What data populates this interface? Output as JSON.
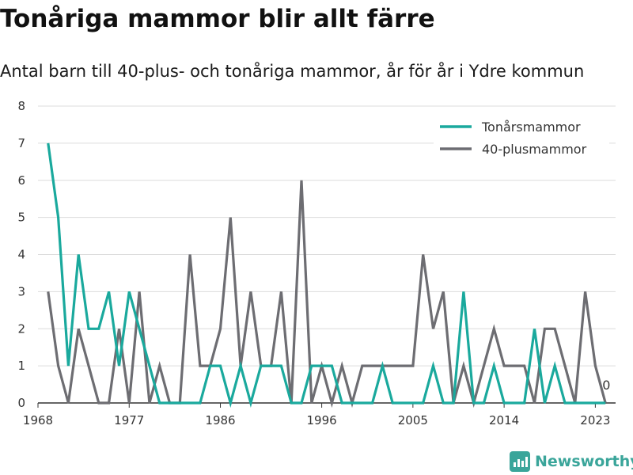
{
  "title": "Tonåriga mammor blir allt färre",
  "subtitle": "Antal barn till 40-plus- och tonåriga mammor, år för år i Ydre kommun",
  "brand": {
    "name": "Newsworthy",
    "color": "#3aa59a",
    "icon": "bar-chart-icon"
  },
  "chart_data": {
    "type": "line",
    "title": "Tonåriga mammor blir allt färre",
    "subtitle": "Antal barn till 40-plus- och tonåriga mammor, år för år i Ydre kommun",
    "xlabel": "",
    "ylabel": "",
    "x": [
      1969,
      1970,
      1971,
      1972,
      1973,
      1974,
      1975,
      1976,
      1977,
      1978,
      1979,
      1980,
      1981,
      1982,
      1983,
      1984,
      1985,
      1986,
      1987,
      1988,
      1989,
      1990,
      1991,
      1992,
      1993,
      1994,
      1995,
      1996,
      1997,
      1998,
      1999,
      2000,
      2001,
      2002,
      2003,
      2004,
      2005,
      2006,
      2007,
      2008,
      2009,
      2010,
      2011,
      2012,
      2013,
      2014,
      2015,
      2016,
      2017,
      2018,
      2019,
      2020,
      2021,
      2022,
      2023,
      2024
    ],
    "series": [
      {
        "name": "Tonårsmammor",
        "color": "#1aa99d",
        "values": [
          7,
          5,
          1,
          4,
          2,
          2,
          3,
          1,
          3,
          2,
          1,
          0,
          0,
          0,
          0,
          0,
          1,
          1,
          0,
          1,
          0,
          1,
          1,
          1,
          0,
          0,
          1,
          1,
          1,
          0,
          0,
          0,
          0,
          1,
          0,
          0,
          0,
          0,
          1,
          0,
          0,
          3,
          0,
          0,
          1,
          0,
          0,
          0,
          2,
          0,
          1,
          0,
          0,
          0,
          0,
          0
        ]
      },
      {
        "name": "40-plusmammor",
        "color": "#6d6d72",
        "values": [
          3,
          1,
          0,
          2,
          1,
          0,
          0,
          2,
          0,
          3,
          0,
          1,
          0,
          0,
          4,
          1,
          1,
          2,
          5,
          1,
          3,
          1,
          1,
          3,
          0,
          6,
          0,
          1,
          0,
          1,
          0,
          1,
          1,
          1,
          1,
          1,
          1,
          4,
          2,
          3,
          0,
          1,
          0,
          1,
          2,
          1,
          1,
          1,
          0,
          2,
          2,
          1,
          0,
          3,
          1,
          0
        ]
      }
    ],
    "xticks": [
      "1968",
      "1977",
      "1986",
      "1996",
      "2005",
      "2014",
      "2023"
    ],
    "xtick_values": [
      1968,
      1977,
      1986,
      1996,
      2005,
      2014,
      2023
    ],
    "yticks": [
      "0",
      "1",
      "2",
      "3",
      "4",
      "5",
      "6",
      "7",
      "8"
    ],
    "ylim": [
      0,
      8
    ],
    "xlim": [
      1968,
      2025
    ],
    "end_label": "0",
    "grid": "horizontal",
    "legend": "top-right"
  }
}
